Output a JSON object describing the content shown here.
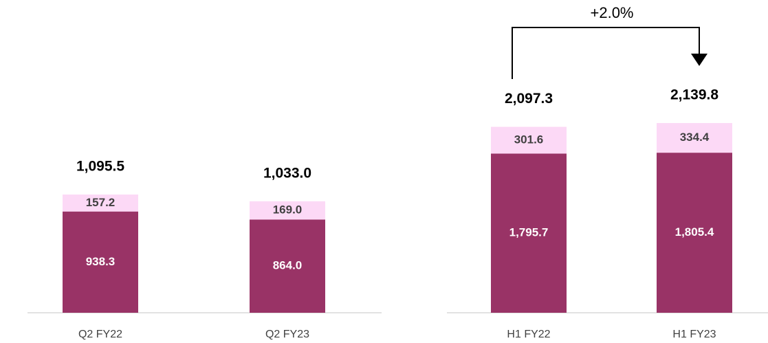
{
  "chart_data": [
    {
      "type": "bar",
      "stacked": true,
      "categories": [
        "Q2 FY22",
        "Q2 FY23"
      ],
      "series": [
        {
          "color": "#993366",
          "label_color": "#ffffff",
          "values": [
            938.3,
            864.0
          ],
          "value_labels": [
            "938.3",
            "864.0"
          ]
        },
        {
          "color": "#fcd9f6",
          "label_color": "#404040",
          "values": [
            157.2,
            169.0
          ],
          "value_labels": [
            "157.2",
            "169.0"
          ]
        }
      ],
      "totals": {
        "values": [
          1095.5,
          1033.0
        ],
        "value_labels": [
          "1,095.5",
          "1,033.0"
        ]
      }
    },
    {
      "type": "bar",
      "stacked": true,
      "categories": [
        "H1 FY22",
        "H1 FY23"
      ],
      "series": [
        {
          "color": "#993366",
          "label_color": "#ffffff",
          "values": [
            1795.7,
            1805.4
          ],
          "value_labels": [
            "1,795.7",
            "1,805.4"
          ]
        },
        {
          "color": "#fcd9f6",
          "label_color": "#404040",
          "values": [
            301.6,
            334.4
          ],
          "value_labels": [
            "301.6",
            "334.4"
          ]
        }
      ],
      "totals": {
        "values": [
          2097.3,
          2139.8
        ],
        "value_labels": [
          "2,097.3",
          "2,139.8"
        ]
      },
      "annotation": "+2.0%"
    }
  ]
}
